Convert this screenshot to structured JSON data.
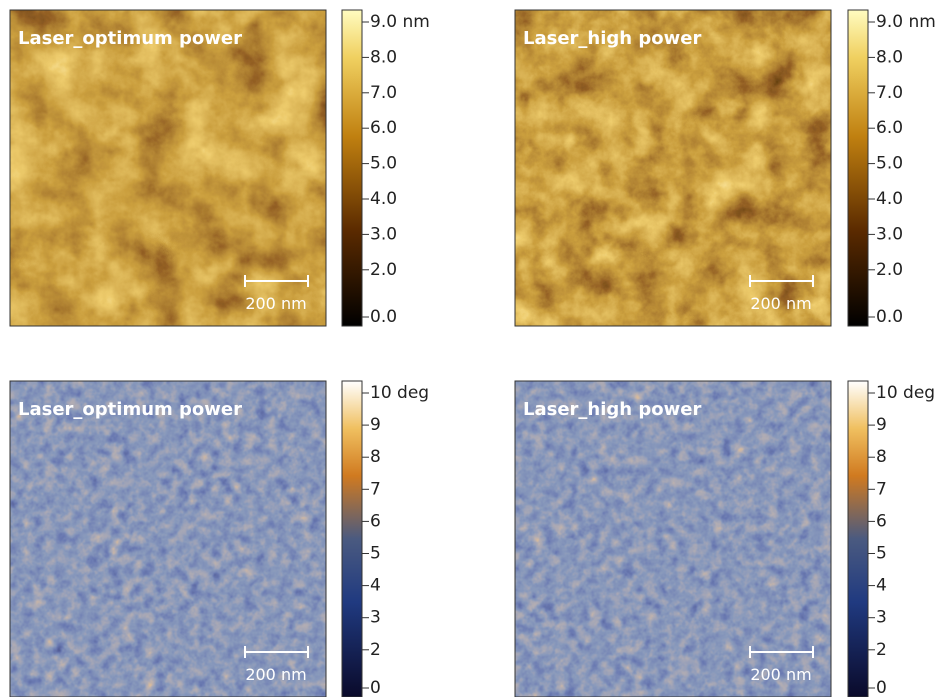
{
  "panels": [
    {
      "label": "Laser_optimum power",
      "scale_bar": "200 nm",
      "colorbar_ticks": [
        "9.0 nm",
        "8.0",
        "7.0",
        "6.0",
        "5.0",
        "4.0",
        "3.0",
        "2.0",
        "0.0"
      ]
    },
    {
      "label": "Laser_high power",
      "scale_bar": "200 nm",
      "colorbar_ticks": [
        "9.0 nm",
        "8.0",
        "7.0",
        "6.0",
        "5.0",
        "4.0",
        "3.0",
        "2.0",
        "0.0"
      ]
    },
    {
      "label": "Laser_optimum power",
      "scale_bar": "200 nm",
      "colorbar_ticks": [
        "10 deg",
        "9",
        "8",
        "7",
        "6",
        "5",
        "4",
        "3",
        "2",
        "0"
      ]
    },
    {
      "label": "Laser_high power",
      "scale_bar": "200 nm",
      "colorbar_ticks": [
        "10 deg",
        "9",
        "8",
        "7",
        "6",
        "5",
        "4",
        "3",
        "2",
        "0"
      ]
    }
  ]
}
